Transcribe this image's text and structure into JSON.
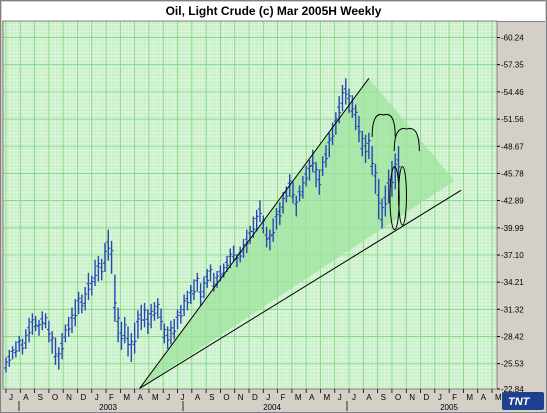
{
  "title": "Oil, Light Crude (c) Mar 2005H Weekly",
  "logo": "TNT",
  "colors": {
    "plot_bg": "#c8f0c8",
    "grid_minor": "#e2f7e2",
    "grid_major": "#7fd67f",
    "bars": "#2846b4",
    "wedge_fill": "#9de39d",
    "lines": "#000000"
  },
  "chart_data": {
    "type": "ohlc",
    "title": "Oil, Light Crude (c) Mar 2005H Weekly",
    "ylim": [
      22.84,
      62.0
    ],
    "y_ticks": [
      "60.24",
      "57.35",
      "54.46",
      "51.56",
      "48.67",
      "45.78",
      "42.89",
      "39.99",
      "37.10",
      "34.21",
      "31.32",
      "28.42",
      "25.53",
      "22.84"
    ],
    "months": [
      "J",
      "A",
      "S",
      "O",
      "N",
      "D",
      "J",
      "F",
      "M",
      "A",
      "M",
      "J",
      "J",
      "A",
      "S",
      "O",
      "N",
      "D",
      "J",
      "F",
      "M",
      "A",
      "M",
      "J",
      "J",
      "A",
      "S",
      "O",
      "N",
      "D",
      "J",
      "F",
      "M",
      "A",
      "M"
    ],
    "years": [
      "2003",
      "2004",
      "2005"
    ],
    "trendlines": [
      {
        "from": {
          "week": 40.5,
          "price": 22.9
        },
        "to": {
          "week": 110,
          "price": 55.9
        }
      },
      {
        "from": {
          "week": 40.5,
          "price": 22.9
        },
        "to": {
          "week": 138,
          "price": 44.0
        }
      }
    ],
    "wedge": {
      "apex": {
        "week": 40.5,
        "price": 22.9
      },
      "upper": {
        "week": 110,
        "price": 55.9
      },
      "right": {
        "week": 136,
        "price": 45.0
      }
    },
    "arcs": [
      {
        "center_week": 114.5,
        "top": 52.0,
        "half_width": 3.5
      },
      {
        "center_week": 121.5,
        "top": 50.5,
        "half_width": 3.8
      }
    ],
    "loops": [
      {
        "center_week": 117.8,
        "top": 46.5,
        "bottom": 39.8,
        "half_width": 1.4
      },
      {
        "center_week": 120.2,
        "top": 46.5,
        "bottom": 40.3,
        "half_width": 1.2
      }
    ],
    "weekly": [
      [
        26.2,
        24.6
      ],
      [
        27.0,
        25.2
      ],
      [
        27.4,
        26.0
      ],
      [
        27.9,
        26.2
      ],
      [
        28.5,
        26.8
      ],
      [
        28.2,
        26.5
      ],
      [
        29.2,
        27.1
      ],
      [
        30.4,
        27.8
      ],
      [
        30.9,
        28.6
      ],
      [
        30.6,
        29.0
      ],
      [
        30.2,
        28.5
      ],
      [
        31.1,
        29.1
      ],
      [
        30.9,
        29.3
      ],
      [
        30.1,
        27.8
      ],
      [
        29.0,
        26.6
      ],
      [
        28.3,
        25.4
      ],
      [
        27.3,
        24.9
      ],
      [
        28.8,
        26.0
      ],
      [
        29.7,
        27.8
      ],
      [
        30.5,
        28.4
      ],
      [
        31.5,
        28.8
      ],
      [
        32.4,
        29.5
      ],
      [
        33.2,
        30.8
      ],
      [
        32.9,
        30.9
      ],
      [
        33.7,
        31.2
      ],
      [
        35.2,
        32.3
      ],
      [
        34.9,
        32.8
      ],
      [
        36.6,
        33.8
      ],
      [
        37.0,
        34.3
      ],
      [
        36.7,
        34.4
      ],
      [
        38.4,
        35.3
      ],
      [
        39.8,
        36.5
      ],
      [
        38.6,
        35.1
      ],
      [
        35.0,
        30.0
      ],
      [
        31.5,
        27.8
      ],
      [
        30.0,
        27.0
      ],
      [
        30.5,
        27.7
      ],
      [
        29.5,
        26.3
      ],
      [
        28.8,
        25.7
      ],
      [
        29.9,
        26.6
      ],
      [
        31.2,
        28.2
      ],
      [
        31.8,
        29.1
      ],
      [
        32.0,
        29.4
      ],
      [
        31.3,
        28.7
      ],
      [
        31.9,
        29.3
      ],
      [
        32.1,
        30.1
      ],
      [
        32.5,
        30.3
      ],
      [
        31.4,
        29.1
      ],
      [
        29.8,
        27.7
      ],
      [
        29.5,
        27.1
      ],
      [
        30.1,
        27.6
      ],
      [
        30.3,
        28.1
      ],
      [
        31.3,
        29.2
      ],
      [
        31.8,
        29.8
      ],
      [
        32.9,
        30.6
      ],
      [
        33.3,
        31.2
      ],
      [
        33.9,
        31.9
      ],
      [
        34.5,
        32.3
      ],
      [
        35.2,
        33.2
      ],
      [
        34.1,
        31.7
      ],
      [
        34.8,
        32.5
      ],
      [
        35.6,
        33.6
      ],
      [
        36.1,
        34.3
      ],
      [
        35.2,
        33.2
      ],
      [
        35.4,
        33.6
      ],
      [
        36.0,
        34.3
      ],
      [
        36.2,
        34.7
      ],
      [
        37.0,
        35.3
      ],
      [
        37.8,
        35.7
      ],
      [
        38.1,
        36.4
      ],
      [
        37.2,
        35.8
      ],
      [
        38.0,
        36.3
      ],
      [
        38.8,
        36.8
      ],
      [
        39.8,
        37.3
      ],
      [
        40.2,
        38.3
      ],
      [
        41.2,
        38.9
      ],
      [
        41.9,
        39.6
      ],
      [
        42.9,
        40.6
      ],
      [
        41.3,
        39.4
      ],
      [
        40.1,
        37.9
      ],
      [
        39.8,
        37.6
      ],
      [
        41.0,
        38.5
      ],
      [
        42.1,
        39.8
      ],
      [
        42.7,
        40.3
      ],
      [
        43.8,
        41.5
      ],
      [
        44.4,
        42.7
      ],
      [
        45.7,
        43.3
      ],
      [
        44.9,
        42.6
      ],
      [
        43.4,
        41.2
      ],
      [
        44.5,
        42.8
      ],
      [
        45.5,
        43.1
      ],
      [
        46.6,
        44.4
      ],
      [
        47.2,
        45.0
      ],
      [
        48.3,
        45.9
      ],
      [
        47.0,
        44.3
      ],
      [
        46.2,
        43.5
      ],
      [
        47.6,
        45.5
      ],
      [
        48.8,
        46.4
      ],
      [
        50.1,
        47.5
      ],
      [
        51.2,
        48.8
      ],
      [
        52.3,
        49.9
      ],
      [
        54.0,
        51.1
      ],
      [
        55.2,
        52.4
      ],
      [
        55.9,
        53.1
      ],
      [
        54.8,
        52.2
      ],
      [
        54.1,
        51.7
      ],
      [
        53.1,
        50.4
      ],
      [
        51.9,
        49.1
      ],
      [
        50.3,
        47.6
      ],
      [
        49.9,
        46.9
      ],
      [
        50.1,
        47.3
      ],
      [
        48.7,
        45.6
      ],
      [
        46.8,
        43.6
      ],
      [
        45.2,
        40.9
      ],
      [
        43.1,
        39.9
      ],
      [
        44.5,
        41.2
      ],
      [
        46.2,
        42.6
      ],
      [
        47.1,
        43.3
      ],
      [
        47.9,
        44.1
      ],
      [
        48.7,
        45.0
      ]
    ]
  }
}
